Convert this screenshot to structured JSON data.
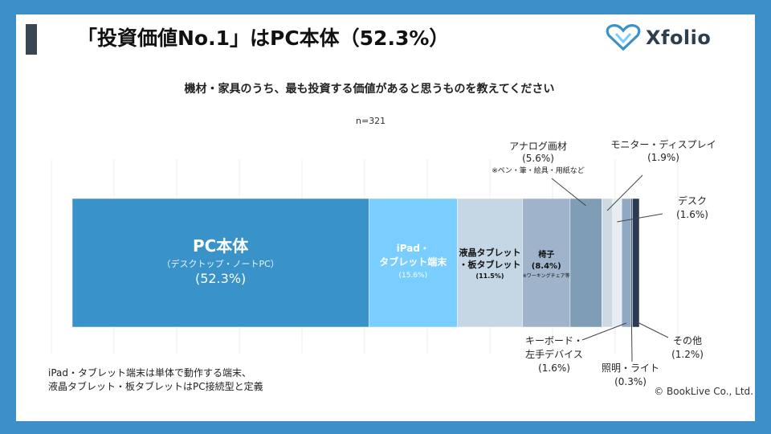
{
  "header": {
    "title": "「投資価値No.1」はPC本体（52.3%）",
    "logo_text": "Xfolio"
  },
  "subtitle": "機材・家具のうち、最も投資する価値があると思うものを教えてください",
  "sample_size": "n=321",
  "footnote": [
    "iPad・タブレット端末は単体で動作する端末、",
    "液晶タブレット・板タブレットはPC接続型と定義"
  ],
  "copyright": "© BookLive Co., Ltd.",
  "colors": {
    "frame": "#3d8fc9",
    "title_bar": "#3a4651"
  },
  "chart_data": {
    "type": "bar",
    "orientation": "horizontal-stacked-100",
    "xlim": [
      0,
      100
    ],
    "grid": true,
    "series": [
      {
        "name": "PC本体",
        "value": 52.3,
        "color": "#3a93c8",
        "inside": [
          "PC本体",
          "（デスクトップ・ノートPC）",
          "(52.3%)"
        ]
      },
      {
        "name": "iPad・タブレット端末",
        "value": 15.6,
        "color": "#79ceff",
        "inside": [
          "iPad・",
          "タブレット端末",
          "(15.6%)"
        ]
      },
      {
        "name": "液晶タブレット・板タブレット",
        "value": 11.5,
        "color": "#c5d6e4",
        "inside": [
          "液晶タブレット",
          "・板タブレット",
          "(11.5%)"
        ]
      },
      {
        "name": "椅子",
        "value": 8.4,
        "color": "#9fb4cb",
        "inside": [
          "椅子",
          "(8.4%)",
          "※ワーキングチェア等"
        ]
      },
      {
        "name": "アナログ画材",
        "value": 5.6,
        "color": "#7f9eb5",
        "outside": [
          "アナログ画材",
          "(5.6%)",
          "※ペン・筆・絵具・用紙など"
        ]
      },
      {
        "name": "モニター・ディスプレイ",
        "value": 1.9,
        "color": "#cfd9e3",
        "outside": [
          "モニター・ディスプレイ",
          "(1.9%)"
        ]
      },
      {
        "name": "デスク",
        "value": 1.6,
        "color": "#e6edf3",
        "outside": [
          "デスク",
          "(1.6%)"
        ]
      },
      {
        "name": "キーボード・左手デバイス",
        "value": 1.6,
        "color": "#8fa8c4",
        "outside": [
          "キーボード・",
          "左手デバイス",
          "(1.6%)"
        ]
      },
      {
        "name": "照明・ライト",
        "value": 0.3,
        "color": "#4b5e78",
        "outside": [
          "照明・ライト",
          "(0.3%)"
        ]
      },
      {
        "name": "その他",
        "value": 1.2,
        "color": "#2a3a52",
        "outside": [
          "その他",
          "(1.2%)"
        ]
      }
    ]
  }
}
